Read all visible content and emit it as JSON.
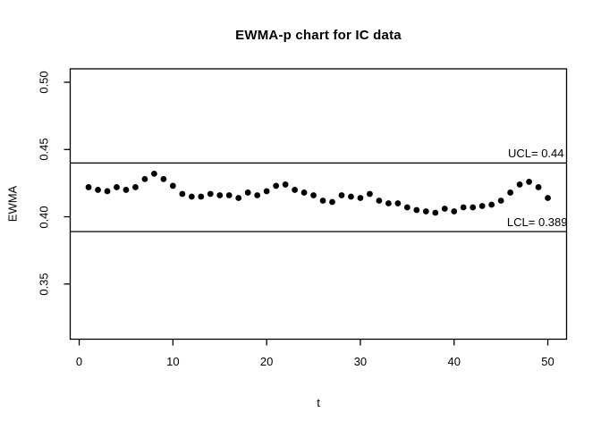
{
  "title": "EWMA-p chart for IC data",
  "chart_data": {
    "type": "scatter",
    "title": "EWMA-p chart for IC data",
    "xlabel": "t",
    "ylabel": "EWMA",
    "grid": false,
    "legend": null,
    "point_color": "#000000",
    "line_color": "#000000",
    "xlim": [
      -0.96,
      52.0
    ],
    "ylim": [
      0.309,
      0.51
    ],
    "xticks": [
      {
        "v": 0,
        "label": "0"
      },
      {
        "v": 10,
        "label": "10"
      },
      {
        "v": 20,
        "label": "20"
      },
      {
        "v": 30,
        "label": "30"
      },
      {
        "v": 40,
        "label": "40"
      },
      {
        "v": 50,
        "label": "50"
      }
    ],
    "yticks": [
      {
        "v": 0.35,
        "label": "0.35"
      },
      {
        "v": 0.4,
        "label": "0.40"
      },
      {
        "v": 0.45,
        "label": "0.45"
      },
      {
        "v": 0.5,
        "label": "0.50"
      }
    ],
    "ucl": {
      "value": 0.44,
      "label": "UCL= 0.44"
    },
    "lcl": {
      "value": 0.389,
      "label": "LCL= 0.389"
    },
    "x": [
      1,
      2,
      3,
      4,
      5,
      6,
      7,
      8,
      9,
      10,
      11,
      12,
      13,
      14,
      15,
      16,
      17,
      18,
      19,
      20,
      21,
      22,
      23,
      24,
      25,
      26,
      27,
      28,
      29,
      30,
      31,
      32,
      33,
      34,
      35,
      36,
      37,
      38,
      39,
      40,
      41,
      42,
      43,
      44,
      45,
      46,
      47,
      48,
      49,
      50
    ],
    "y": [
      0.422,
      0.42,
      0.419,
      0.422,
      0.42,
      0.422,
      0.428,
      0.432,
      0.428,
      0.423,
      0.417,
      0.415,
      0.415,
      0.417,
      0.416,
      0.416,
      0.414,
      0.418,
      0.416,
      0.419,
      0.423,
      0.424,
      0.42,
      0.418,
      0.416,
      0.412,
      0.411,
      0.416,
      0.415,
      0.414,
      0.417,
      0.412,
      0.41,
      0.41,
      0.407,
      0.405,
      0.404,
      0.403,
      0.406,
      0.404,
      0.407,
      0.407,
      0.408,
      0.409,
      0.412,
      0.418,
      0.424,
      0.426,
      0.422,
      0.414
    ]
  }
}
